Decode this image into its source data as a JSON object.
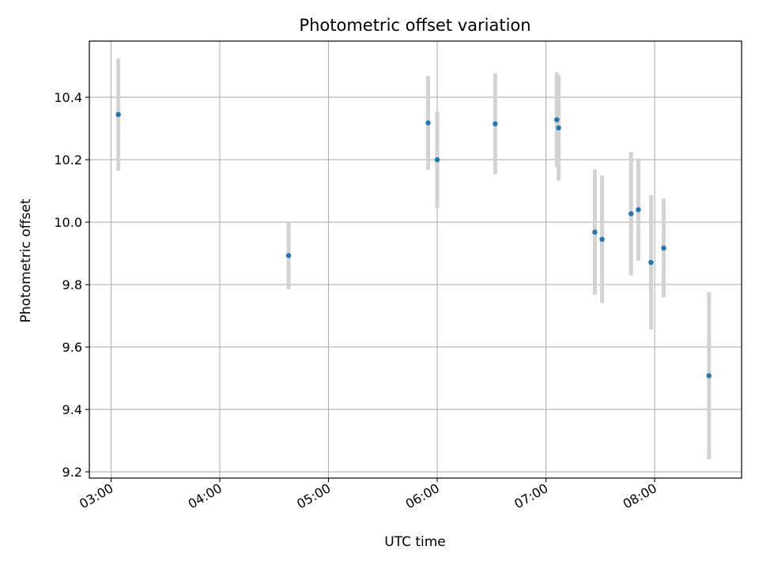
{
  "chart_data": {
    "type": "scatter",
    "title": "Photometric offset variation",
    "xlabel": "UTC time",
    "ylabel": "Photometric offset",
    "x_tick_labels": [
      "03:00",
      "04:00",
      "05:00",
      "06:00",
      "07:00",
      "08:00"
    ],
    "y_tick_labels": [
      "9.2",
      "9.4",
      "9.6",
      "9.8",
      "10.0",
      "10.2",
      "10.4"
    ],
    "xlim": [
      "02:48",
      "08:48"
    ],
    "ylim": [
      9.18,
      10.58
    ],
    "grid": true,
    "series": [
      {
        "points": [
          {
            "x": "03:04",
            "y": 10.345,
            "yerr_low": 10.165,
            "yerr_high": 10.525
          },
          {
            "x": "04:38",
            "y": 9.893,
            "yerr_low": 9.785,
            "yerr_high": 10.001
          },
          {
            "x": "05:55",
            "y": 10.318,
            "yerr_low": 10.168,
            "yerr_high": 10.468
          },
          {
            "x": "06:00",
            "y": 10.2,
            "yerr_low": 10.045,
            "yerr_high": 10.355
          },
          {
            "x": "06:32",
            "y": 10.315,
            "yerr_low": 10.153,
            "yerr_high": 10.477
          },
          {
            "x": "07:06",
            "y": 10.328,
            "yerr_low": 10.176,
            "yerr_high": 10.48
          },
          {
            "x": "07:07",
            "y": 10.302,
            "yerr_low": 10.133,
            "yerr_high": 10.471
          },
          {
            "x": "07:27",
            "y": 9.968,
            "yerr_low": 9.767,
            "yerr_high": 10.169
          },
          {
            "x": "07:31",
            "y": 9.945,
            "yerr_low": 9.741,
            "yerr_high": 10.149
          },
          {
            "x": "07:47",
            "y": 10.027,
            "yerr_low": 9.829,
            "yerr_high": 10.225
          },
          {
            "x": "07:51",
            "y": 10.04,
            "yerr_low": 9.876,
            "yerr_high": 10.204
          },
          {
            "x": "07:58",
            "y": 9.871,
            "yerr_low": 9.656,
            "yerr_high": 10.086
          },
          {
            "x": "08:05",
            "y": 9.917,
            "yerr_low": 9.759,
            "yerr_high": 10.075
          },
          {
            "x": "08:30",
            "y": 9.508,
            "yerr_low": 9.24,
            "yerr_high": 9.776
          }
        ]
      }
    ],
    "colors": {
      "point": "#1f77b4",
      "errorbar": "#d3d3d3",
      "grid": "#b0b0b0",
      "axes": "#000000"
    }
  }
}
